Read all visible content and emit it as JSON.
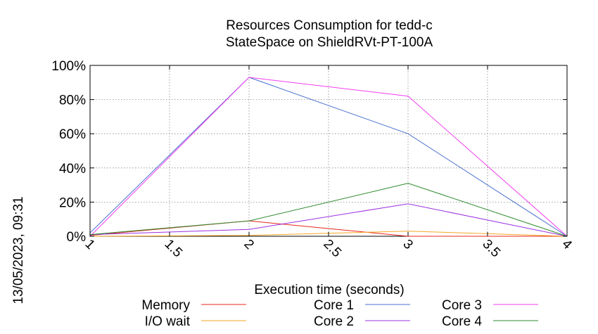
{
  "chart_data": {
    "type": "line",
    "title": "Resources Consumption for tedd-c",
    "subtitle": "StateSpace on ShieldRVt-PT-100A",
    "xlabel": "Execution time (seconds)",
    "ylabel": "",
    "side_label": "13/05/2023, 09:31",
    "xlim": [
      1,
      4
    ],
    "ylim": [
      0,
      100
    ],
    "x_ticks": [
      "1",
      "1.5",
      "2",
      "2.5",
      "3",
      "3.5",
      "4"
    ],
    "y_ticks": [
      "0%",
      "20%",
      "40%",
      "60%",
      "80%",
      "100%"
    ],
    "grid": true,
    "legend_position": "bottom",
    "series": [
      {
        "name": "Memory",
        "color": "#e8271c",
        "x": [
          1,
          2,
          3,
          4
        ],
        "y": [
          0.5,
          9,
          0,
          0
        ]
      },
      {
        "name": "I/O wait",
        "color": "#f5a623",
        "x": [
          1,
          2,
          3,
          4
        ],
        "y": [
          0,
          0.5,
          3,
          0
        ]
      },
      {
        "name": "Core 1",
        "color": "#4a72cf",
        "x": [
          1,
          2,
          3,
          4
        ],
        "y": [
          2,
          93,
          60,
          0
        ]
      },
      {
        "name": "Core 2",
        "color": "#9b30e0",
        "x": [
          1,
          2,
          3,
          4
        ],
        "y": [
          1,
          4,
          19,
          0
        ]
      },
      {
        "name": "Core 3",
        "color": "#f23cf0",
        "x": [
          1,
          2,
          3,
          4
        ],
        "y": [
          0,
          93,
          82,
          0
        ]
      },
      {
        "name": "Core 4",
        "color": "#2e8b2e",
        "x": [
          1,
          2,
          3,
          4
        ],
        "y": [
          1,
          9,
          31,
          0
        ]
      }
    ]
  }
}
